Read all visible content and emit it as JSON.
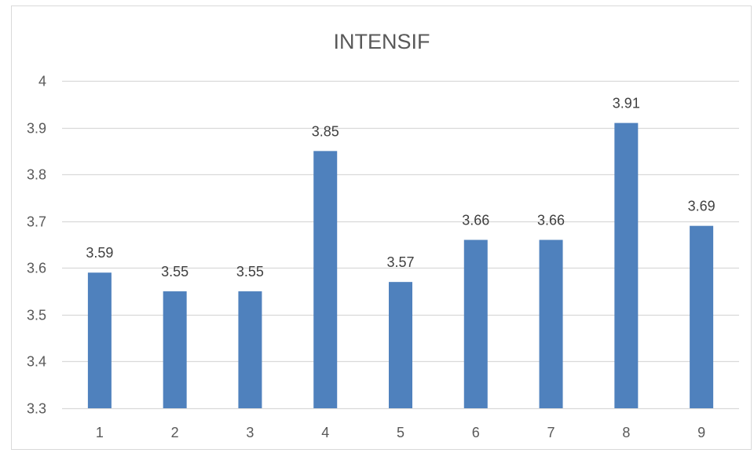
{
  "chart_data": {
    "type": "bar",
    "title": "INTENSIF",
    "xlabel": "",
    "ylabel": "",
    "categories": [
      "1",
      "2",
      "3",
      "4",
      "5",
      "6",
      "7",
      "8",
      "9"
    ],
    "values": [
      3.59,
      3.55,
      3.55,
      3.85,
      3.57,
      3.66,
      3.66,
      3.91,
      3.69
    ],
    "data_labels": [
      "3.59",
      "3.55",
      "3.55",
      "3.85",
      "3.57",
      "3.66",
      "3.66",
      "3.91",
      "3.69"
    ],
    "ylim": [
      3.3,
      4.0
    ],
    "yticks": [
      3.3,
      3.4,
      3.5,
      3.6,
      3.7,
      3.8,
      3.9,
      4.0
    ],
    "ytick_labels": [
      "3.3",
      "3.4",
      "3.5",
      "3.6",
      "3.7",
      "3.8",
      "3.9",
      "4"
    ],
    "grid": true,
    "legend": "none",
    "colors": {
      "bar": "#4f81bd",
      "grid": "#d9d9d9",
      "tick_text": "#595959",
      "label_text": "#404040",
      "title_text": "#595959"
    }
  }
}
